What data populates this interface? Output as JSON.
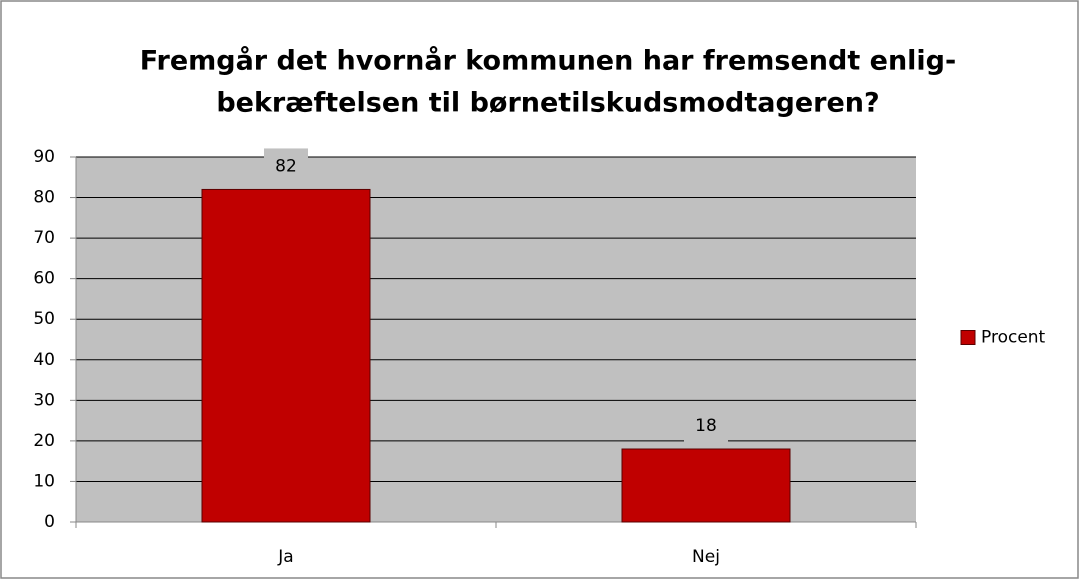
{
  "chart_data": {
    "type": "bar",
    "title": [
      "Fremgår det hvornår kommunen har fremsendt enlig-",
      "bekræftelsen til børnetilskudsmodtageren?"
    ],
    "categories": [
      "Ja",
      "Nej"
    ],
    "series": [
      {
        "name": "Procent",
        "color": "#c00000",
        "values": [
          82,
          18
        ]
      }
    ],
    "ylim": [
      0,
      90
    ],
    "yticks": [
      0,
      10,
      20,
      30,
      40,
      50,
      60,
      70,
      80,
      90
    ],
    "grid": true,
    "legend": "right",
    "plot_background": "#c0c0c0",
    "data_labels": true
  }
}
